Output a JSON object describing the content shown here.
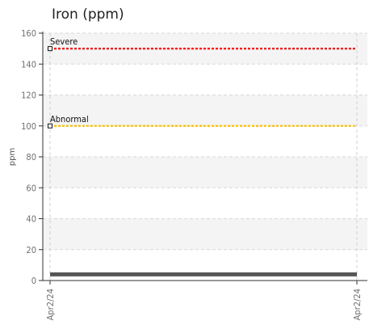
{
  "chart_data": {
    "type": "line",
    "title": "Iron (ppm)",
    "xlabel": "",
    "ylabel": "ppm",
    "ylim": [
      0,
      160
    ],
    "yticks": [
      0,
      20,
      40,
      60,
      80,
      100,
      120,
      140,
      160
    ],
    "x_tick_labels": [
      "Apr2/24",
      "Apr2/24"
    ],
    "grid": true,
    "series": [
      {
        "x": [
          "Apr2/24"
        ],
        "values": [
          4
        ]
      }
    ],
    "reference_lines": [
      {
        "name": "Severe",
        "value": 150,
        "color": "#ff0000"
      },
      {
        "name": "Abnormal",
        "value": 100,
        "color": "#ffc000"
      }
    ],
    "data_line_color": "#555555"
  }
}
